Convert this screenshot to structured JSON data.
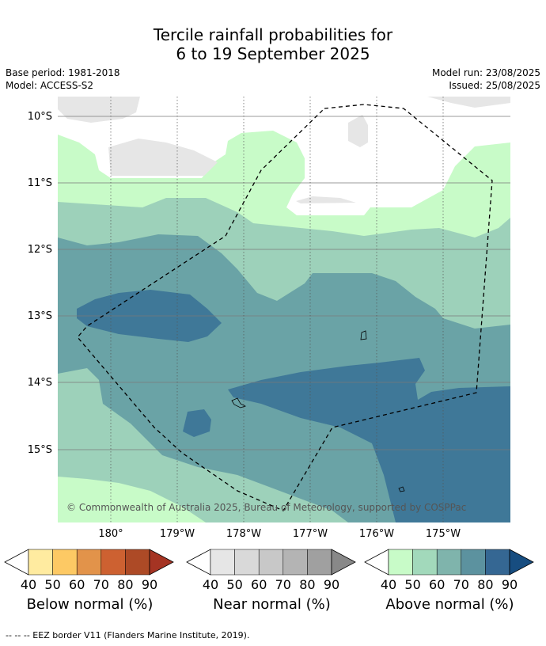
{
  "title": {
    "line1": "Tercile rainfall probabilities for",
    "line2": "6 to 19 September 2025"
  },
  "meta": {
    "base_period": "Base period: 1981-2018",
    "model": "Model: ACCESS-S2",
    "model_run": "Model run: 23/08/2025",
    "issued": "Issued: 25/08/2025"
  },
  "map": {
    "lat_labels": [
      "10°S",
      "11°S",
      "12°S",
      "13°S",
      "14°S",
      "15°S"
    ],
    "lon_labels": [
      "180°",
      "179°W",
      "178°W",
      "177°W",
      "176°W",
      "175°W"
    ],
    "credit": "© Commonwealth of Australia 2025, Bureau of Meteorology, supported by COSPPac",
    "colors": {
      "above_40": "#c8fbc8",
      "above_50": "#9dd1ba",
      "above_60": "#6aa3a6",
      "above_70": "#3f7898",
      "near": "#e6e6e6"
    }
  },
  "colorbars": [
    {
      "title": "Below normal (%)",
      "ticks": [
        "40",
        "50",
        "60",
        "70",
        "80",
        "90"
      ],
      "colors": [
        "#ffffff",
        "#ffeba0",
        "#fdc964",
        "#e2934a",
        "#cd6131",
        "#ad4a26",
        "#a53423"
      ]
    },
    {
      "title": "Near normal (%)",
      "ticks": [
        "40",
        "50",
        "60",
        "70",
        "80",
        "90"
      ],
      "colors": [
        "#ffffff",
        "#e6e6e6",
        "#d9d9d9",
        "#c8c8c8",
        "#b4b4b4",
        "#a0a0a0",
        "#888888"
      ]
    },
    {
      "title": "Above normal (%)",
      "ticks": [
        "40",
        "50",
        "60",
        "70",
        "80",
        "90"
      ],
      "colors": [
        "#ffffff",
        "#c8fbc8",
        "#a2d9bb",
        "#7fb4ac",
        "#5c929f",
        "#356793",
        "#174d80"
      ]
    }
  ],
  "footer": "--  --  -- EEZ border V11 (Flanders Marine Institute, 2019)."
}
